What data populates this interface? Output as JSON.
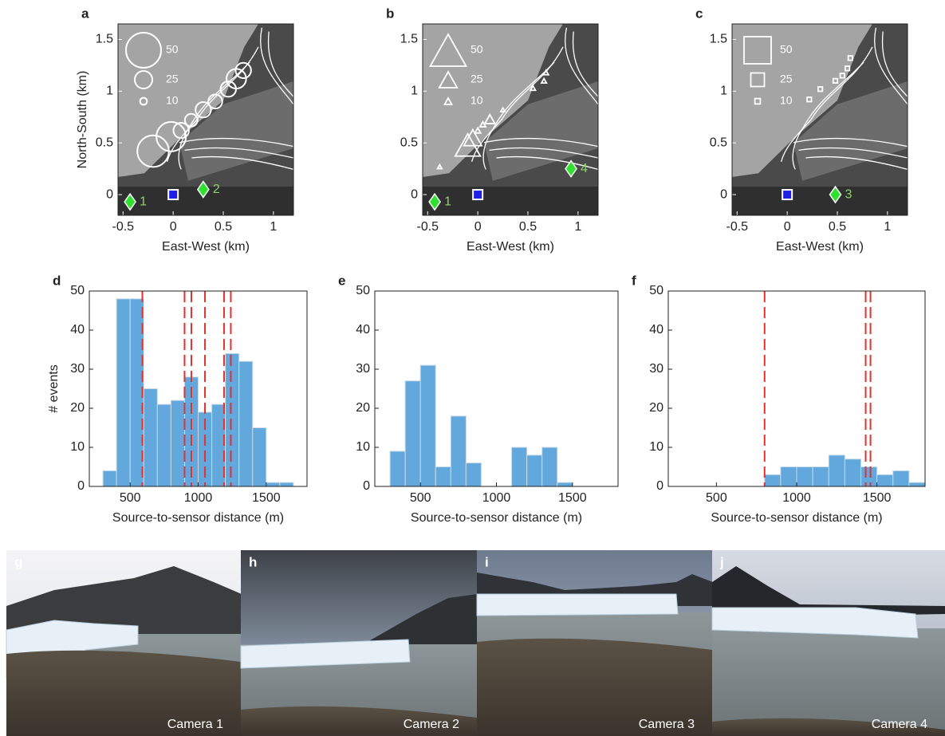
{
  "chart_data": [
    {
      "type": "scatter",
      "label": "a",
      "marker": "circle",
      "xlabel": "East-West (km)",
      "ylabel": "North-South (km)",
      "xlim": [
        -0.55,
        1.2
      ],
      "ylim": [
        -0.2,
        1.65
      ],
      "xticks": [
        -0.5,
        0,
        0.5,
        1
      ],
      "yticks": [
        0,
        0.5,
        1,
        1.5
      ],
      "points": {
        "x": [
          -0.2,
          -0.02,
          0.08,
          0.18,
          0.3,
          0.42,
          0.55,
          0.63,
          0.7
        ],
        "y": [
          0.42,
          0.56,
          0.62,
          0.72,
          0.82,
          0.9,
          1.02,
          1.12,
          1.2
        ],
        "size": [
          45,
          42,
          22,
          18,
          22,
          20,
          22,
          28,
          22
        ]
      },
      "size_legend": [
        50,
        25,
        10
      ],
      "sensors": {
        "x": [
          -0.43,
          0.3
        ],
        "y": [
          -0.07,
          0.05
        ],
        "labels": [
          "1",
          "2"
        ]
      },
      "reference": {
        "x": 0,
        "y": 0
      }
    },
    {
      "type": "scatter",
      "label": "b",
      "marker": "triangle",
      "xlabel": "East-West (km)",
      "xlim": [
        -0.55,
        1.2
      ],
      "ylim": [
        -0.2,
        1.65
      ],
      "xticks": [
        -0.5,
        0,
        0.5,
        1
      ],
      "yticks": [
        0,
        0.5,
        1,
        1.5
      ],
      "points": {
        "x": [
          -0.38,
          -0.1,
          -0.05,
          0.0,
          0.05,
          0.12,
          0.25,
          0.55,
          0.66,
          0.68
        ],
        "y": [
          0.27,
          0.48,
          0.55,
          0.62,
          0.68,
          0.73,
          0.82,
          1.03,
          1.1,
          1.18
        ],
        "size": [
          6,
          35,
          25,
          8,
          8,
          14,
          6,
          7,
          7,
          7
        ]
      },
      "size_legend": [
        50,
        25,
        10
      ],
      "sensors": {
        "x": [
          -0.43,
          0.93
        ],
        "y": [
          -0.07,
          0.25
        ],
        "labels": [
          "1",
          "4"
        ]
      },
      "reference": {
        "x": 0,
        "y": 0
      }
    },
    {
      "type": "scatter",
      "label": "c",
      "marker": "square",
      "xlabel": "East-West (km)",
      "xlim": [
        -0.55,
        1.2
      ],
      "ylim": [
        -0.2,
        1.65
      ],
      "xticks": [
        -0.5,
        0,
        0.5,
        1
      ],
      "yticks": [
        0,
        0.5,
        1,
        1.5
      ],
      "points": {
        "x": [
          0.22,
          0.33,
          0.48,
          0.55,
          0.6,
          0.63
        ],
        "y": [
          0.92,
          1.02,
          1.1,
          1.15,
          1.22,
          1.32
        ],
        "size": [
          8,
          8,
          8,
          8,
          8,
          8
        ]
      },
      "size_legend": [
        50,
        25,
        10
      ],
      "sensors": {
        "x": [
          0.48
        ],
        "y": [
          0.0
        ],
        "labels": [
          "3"
        ]
      },
      "reference": {
        "x": 0,
        "y": 0
      }
    },
    {
      "type": "histogram",
      "label": "d",
      "xlabel": "Source-to-sensor distance (m)",
      "ylabel": "# events",
      "color": "#62a8dc",
      "line_color": "#e03232",
      "bins": [
        300,
        400,
        500,
        600,
        700,
        800,
        900,
        1000,
        1100,
        1200,
        1300,
        1400,
        1500,
        1600,
        1700
      ],
      "counts": [
        4,
        48,
        48,
        25,
        21,
        22,
        28,
        19,
        21,
        34,
        32,
        15,
        1,
        1
      ],
      "vlines": [
        590,
        900,
        950,
        1050,
        1190,
        1240
      ],
      "xlim": [
        200,
        1800
      ],
      "ylim": [
        0,
        50
      ],
      "xticks": [
        500,
        1000,
        1500
      ],
      "yticks": [
        0,
        10,
        20,
        30,
        40,
        50
      ]
    },
    {
      "type": "histogram",
      "label": "e",
      "xlabel": "Source-to-sensor distance (m)",
      "color": "#62a8dc",
      "line_color": "#e03232",
      "bins": [
        300,
        400,
        500,
        600,
        700,
        800,
        900,
        1000,
        1100,
        1200,
        1300,
        1400,
        1500
      ],
      "counts": [
        9,
        27,
        31,
        5,
        18,
        6,
        0,
        0,
        10,
        8,
        10,
        1
      ],
      "vlines": [],
      "xlim": [
        200,
        1800
      ],
      "ylim": [
        0,
        50
      ],
      "xticks": [
        500,
        1000,
        1500
      ],
      "yticks": [
        0,
        10,
        20,
        30,
        40,
        50
      ]
    },
    {
      "type": "histogram",
      "label": "f",
      "xlabel": "Source-to-sensor distance (m)",
      "color": "#62a8dc",
      "line_color": "#e03232",
      "bins": [
        800,
        900,
        1000,
        1100,
        1200,
        1300,
        1400,
        1500,
        1600,
        1700,
        1800
      ],
      "counts": [
        3,
        5,
        5,
        5,
        8,
        7,
        5,
        3,
        4,
        1
      ],
      "vlines": [
        800,
        1430,
        1460
      ],
      "xlim": [
        200,
        1800
      ],
      "ylim": [
        0,
        50
      ],
      "xticks": [
        500,
        1000,
        1500
      ],
      "yticks": [
        0,
        10,
        20,
        30,
        40,
        50
      ]
    }
  ],
  "photos": [
    {
      "label": "g",
      "caption": "Camera 1"
    },
    {
      "label": "h",
      "caption": "Camera 2"
    },
    {
      "label": "i",
      "caption": "Camera 3"
    },
    {
      "label": "j",
      "caption": "Camera 4"
    }
  ]
}
